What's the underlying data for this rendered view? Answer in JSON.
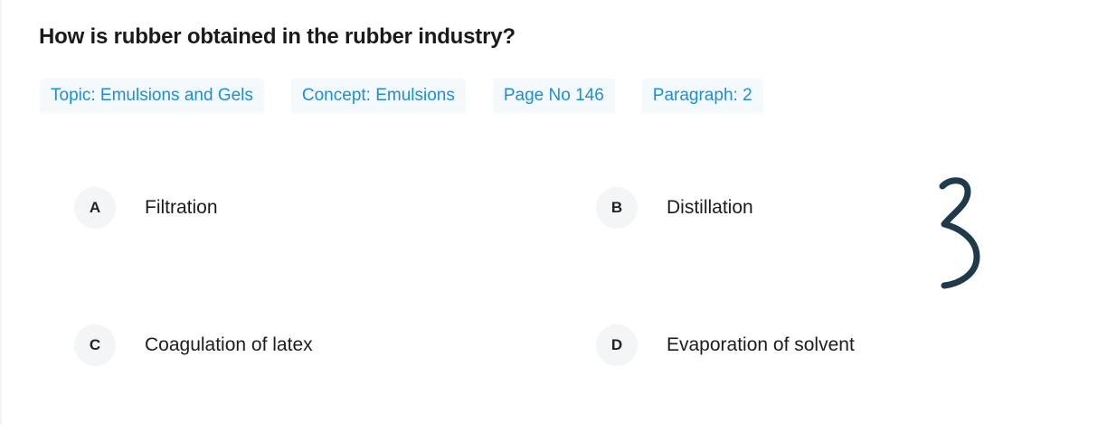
{
  "question": {
    "text": "How is rubber obtained in the rubber industry?"
  },
  "tags": [
    {
      "label": "Topic: Emulsions and Gels"
    },
    {
      "label": "Concept: Emulsions"
    },
    {
      "label": "Page No 146"
    },
    {
      "label": "Paragraph: 2"
    }
  ],
  "options": [
    {
      "letter": "A",
      "text": "Filtration"
    },
    {
      "letter": "B",
      "text": "Distillation"
    },
    {
      "letter": "C",
      "text": "Coagulation of latex"
    },
    {
      "letter": "D",
      "text": "Evaporation of solvent"
    }
  ],
  "annotation": {
    "handwritten_mark": "3",
    "ink_color": "#1f3a4a"
  },
  "colors": {
    "tag_text": "#1d8fd6",
    "tag_background": "#f3f9fd",
    "letter_background": "#f4f5f7"
  }
}
